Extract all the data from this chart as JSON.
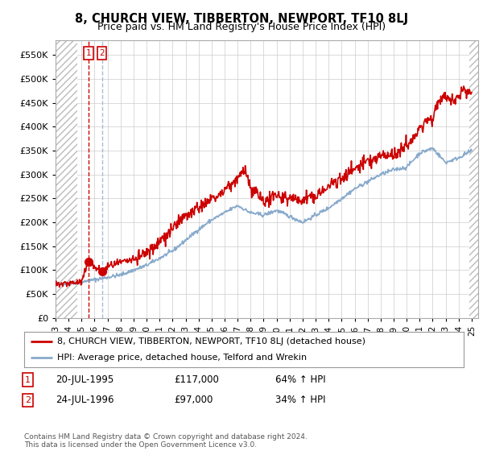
{
  "title": "8, CHURCH VIEW, TIBBERTON, NEWPORT, TF10 8LJ",
  "subtitle": "Price paid vs. HM Land Registry's House Price Index (HPI)",
  "ytick_values": [
    0,
    50000,
    100000,
    150000,
    200000,
    250000,
    300000,
    350000,
    400000,
    450000,
    500000,
    550000
  ],
  "ylim": [
    0,
    580000
  ],
  "xlim_start": 1993.0,
  "xlim_end": 2025.5,
  "transactions": [
    {
      "label": "1",
      "date_year": 1995.55,
      "price": 117000,
      "vline_color": "#cc0000"
    },
    {
      "label": "2",
      "date_year": 1996.56,
      "price": 97000,
      "vline_color": "#aabbdd"
    }
  ],
  "transaction_info": [
    {
      "num": "1",
      "date": "20-JUL-1995",
      "price": "£117,000",
      "hpi": "64% ↑ HPI"
    },
    {
      "num": "2",
      "date": "24-JUL-1996",
      "price": "£97,000",
      "hpi": "34% ↑ HPI"
    }
  ],
  "property_line_color": "#cc0000",
  "hpi_line_color": "#88aacc",
  "legend_property_label": "8, CHURCH VIEW, TIBBERTON, NEWPORT, TF10 8LJ (detached house)",
  "legend_hpi_label": "HPI: Average price, detached house, Telford and Wrekin",
  "footer": "Contains HM Land Registry data © Crown copyright and database right 2024.\nThis data is licensed under the Open Government Licence v3.0.",
  "grid_color": "#cccccc",
  "background_color": "#ffffff",
  "hatch_region_left_end": 1994.7,
  "hatch_region_right_start": 2024.8,
  "xtick_labels": [
    "93",
    "94",
    "95",
    "96",
    "97",
    "98",
    "99",
    "00",
    "01",
    "02",
    "03",
    "04",
    "05",
    "06",
    "07",
    "08",
    "09",
    "10",
    "11",
    "12",
    "13",
    "14",
    "15",
    "16",
    "17",
    "18",
    "19",
    "20",
    "21",
    "22",
    "23",
    "24",
    "25"
  ],
  "xtick_years": [
    1993,
    1994,
    1995,
    1996,
    1997,
    1998,
    1999,
    2000,
    2001,
    2002,
    2003,
    2004,
    2005,
    2006,
    2007,
    2008,
    2009,
    2010,
    2011,
    2012,
    2013,
    2014,
    2015,
    2016,
    2017,
    2018,
    2019,
    2020,
    2021,
    2022,
    2023,
    2024,
    2025
  ]
}
